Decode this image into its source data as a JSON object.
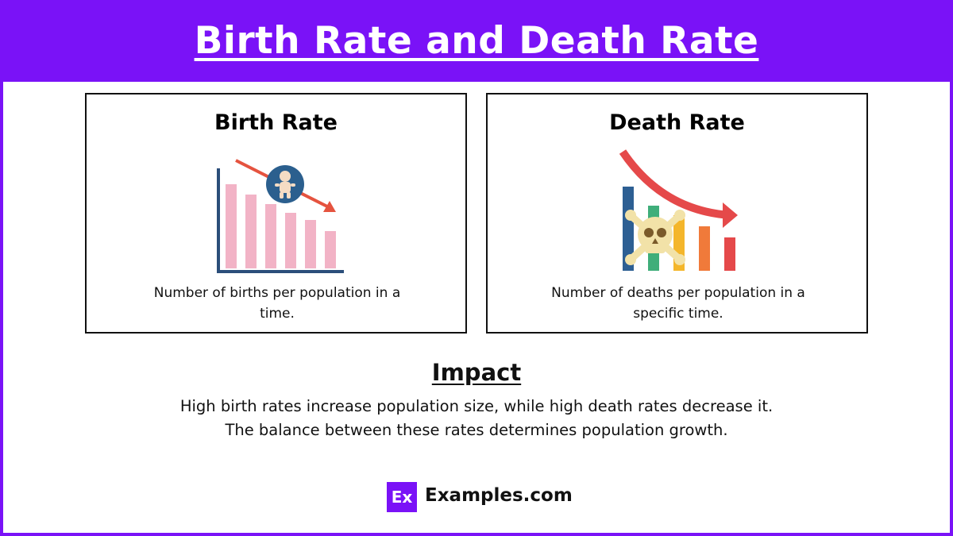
{
  "header": {
    "title": "Birth Rate and Death Rate"
  },
  "cards": [
    {
      "title": "Birth Rate",
      "description": "Number of births per population in a time."
    },
    {
      "title": "Death Rate",
      "description": "Number of deaths per population in a specific time."
    }
  ],
  "impact": {
    "title": "Impact",
    "lines": [
      "High birth rates increase population size, while high death rates decrease it.",
      "The balance between these rates determines population growth."
    ]
  },
  "footer": {
    "logo": "Ex",
    "brand": "Examples.com"
  }
}
